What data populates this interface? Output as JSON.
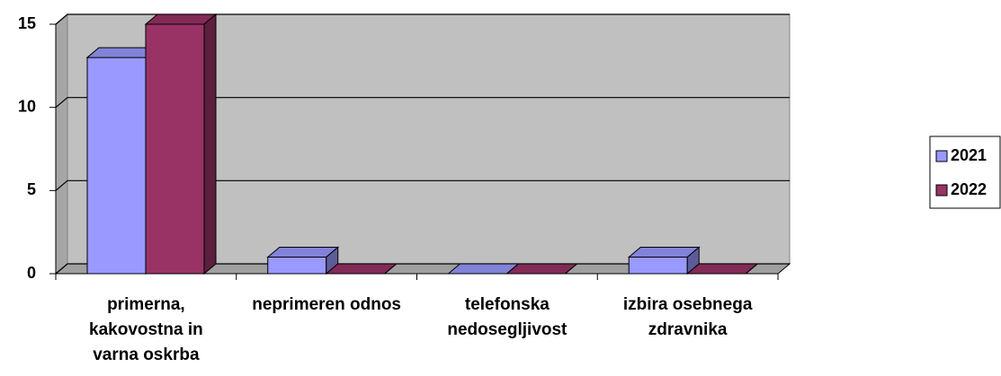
{
  "chart_data": {
    "type": "bar3d",
    "categories": [
      "primerna, kakovostna in varna oskrba",
      "neprimeren odnos",
      "telefonska nedosegljivost",
      "izbira osebnega zdravnika"
    ],
    "series": [
      {
        "name": "2021",
        "color": "#9999ff",
        "values": [
          13,
          1,
          0,
          1
        ]
      },
      {
        "name": "2022",
        "color": "#993366",
        "values": [
          15,
          0,
          0,
          0
        ]
      }
    ],
    "ylim": [
      0,
      15
    ],
    "yticks": [
      0,
      5,
      10,
      15
    ],
    "grid": true,
    "legend": "right"
  }
}
